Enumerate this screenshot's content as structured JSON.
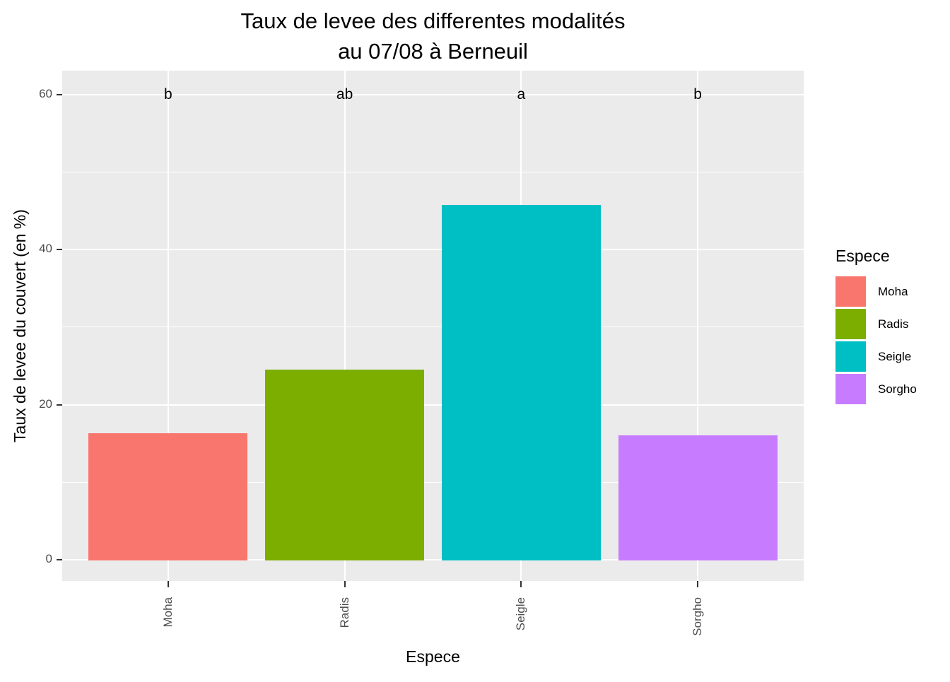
{
  "header": {
    "title_line1": "Taux de levee des differentes modalités",
    "title_line2": "au 07/08 à Berneuil"
  },
  "chart_data": {
    "type": "bar",
    "title": "Taux de levee des differentes modalités au 07/08 à Berneuil",
    "categories": [
      "Moha",
      "Radis",
      "Seigle",
      "Sorgho"
    ],
    "values": [
      16.4,
      24.6,
      45.9,
      16.1
    ],
    "bar_colors": [
      "#F8766D",
      "#7CAE00",
      "#00BFC4",
      "#C77CFF"
    ],
    "significance_labels": [
      "b",
      "ab",
      "a",
      "b"
    ],
    "significance_y": 60,
    "xlabel": "Espece",
    "ylabel": "Taux de levee du couvert (en %)",
    "ylim": [
      0,
      60
    ],
    "yticks": [
      0,
      20,
      40,
      60
    ],
    "yticks_minor": [
      10,
      30,
      50
    ],
    "grid": true,
    "panel_background": "#EBEBEB",
    "grid_color": "#FFFFFF",
    "tick_label_color": "#4D4D4D",
    "legend": {
      "title": "Espece",
      "position": "right",
      "entries": [
        {
          "label": "Moha",
          "color": "#F8766D"
        },
        {
          "label": "Radis",
          "color": "#7CAE00"
        },
        {
          "label": "Seigle",
          "color": "#00BFC4"
        },
        {
          "label": "Sorgho",
          "color": "#C77CFF"
        }
      ]
    }
  }
}
